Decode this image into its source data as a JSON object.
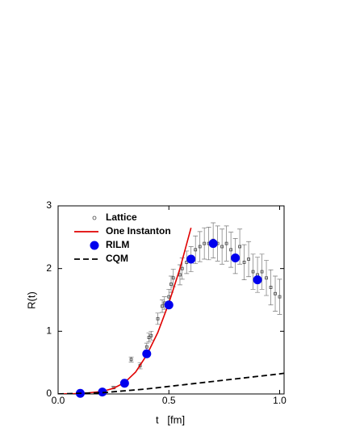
{
  "chart_data": {
    "type": "line",
    "x_label": "t   [fm]",
    "y_label": "R(t)",
    "xlim": [
      0,
      1.02
    ],
    "ylim": [
      0,
      3
    ],
    "xticks": [
      {
        "value": 0,
        "label": "0.0"
      },
      0.5,
      {
        "value": 1,
        "label": "1.0"
      }
    ],
    "yticks": [
      0,
      1,
      2,
      3
    ],
    "legend": "top-left",
    "series": [
      {
        "name": "Lattice",
        "type": "scatter",
        "color": "#444444",
        "x": [
          0.25,
          0.3,
          0.33,
          0.37,
          0.4,
          0.41,
          0.42,
          0.45,
          0.47,
          0.48,
          0.5,
          0.51,
          0.52,
          0.55,
          0.56,
          0.58,
          0.6,
          0.62,
          0.64,
          0.66,
          0.68,
          0.7,
          0.72,
          0.74,
          0.76,
          0.78,
          0.8,
          0.82,
          0.84,
          0.86,
          0.88,
          0.9,
          0.92,
          0.94,
          0.96,
          0.98,
          1.0
        ],
        "values": [
          0.1,
          0.2,
          0.55,
          0.45,
          0.75,
          0.9,
          0.93,
          1.2,
          1.4,
          1.45,
          1.55,
          1.75,
          1.85,
          1.9,
          2.0,
          2.1,
          2.15,
          2.3,
          2.35,
          2.4,
          2.4,
          2.45,
          2.4,
          2.35,
          2.4,
          2.3,
          2.2,
          2.35,
          2.1,
          2.15,
          1.95,
          1.9,
          1.95,
          1.85,
          1.7,
          1.6,
          1.55
        ],
        "errors": [
          0.02,
          0.03,
          0.04,
          0.05,
          0.06,
          0.07,
          0.07,
          0.09,
          0.1,
          0.1,
          0.12,
          0.13,
          0.14,
          0.16,
          0.17,
          0.18,
          0.2,
          0.22,
          0.24,
          0.25,
          0.26,
          0.28,
          0.28,
          0.28,
          0.28,
          0.28,
          0.28,
          0.28,
          0.28,
          0.28,
          0.28,
          0.28,
          0.28,
          0.28,
          0.28,
          0.28,
          0.28
        ]
      },
      {
        "name": "One Instanton",
        "type": "line",
        "color": "#e00000",
        "x": [
          0,
          0.1,
          0.2,
          0.25,
          0.3,
          0.35,
          0.4,
          0.45,
          0.5,
          0.55,
          0.6
        ],
        "values": [
          0,
          0.005,
          0.04,
          0.09,
          0.18,
          0.35,
          0.62,
          0.98,
          1.45,
          2.0,
          2.65
        ]
      },
      {
        "name": "RILM",
        "type": "scatter",
        "color": "#0000ee",
        "x": [
          0.1,
          0.2,
          0.3,
          0.4,
          0.5,
          0.6,
          0.7,
          0.8,
          0.9
        ],
        "values": [
          0.01,
          0.03,
          0.17,
          0.64,
          1.42,
          2.15,
          2.4,
          2.17,
          1.82
        ]
      },
      {
        "name": "CQM",
        "type": "line",
        "color": "#000000",
        "dashed": true,
        "x": [
          0,
          0.2,
          0.4,
          0.6,
          0.8,
          1.0,
          1.02
        ],
        "values": [
          0,
          0.02,
          0.08,
          0.16,
          0.24,
          0.32,
          0.33
        ]
      }
    ]
  }
}
